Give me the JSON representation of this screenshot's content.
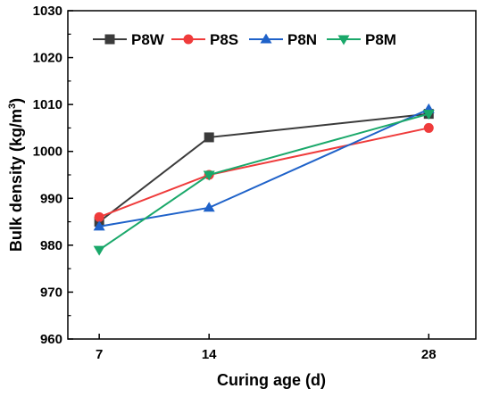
{
  "chart_data": {
    "type": "line",
    "title": "",
    "xlabel": "Curing age (d)",
    "ylabel_main": "Bulk density (kg/m",
    "ylabel_sup": "3",
    "ylabel_end": ")",
    "x": [
      7,
      14,
      28
    ],
    "x_tick_labels": [
      "7",
      "14",
      "28"
    ],
    "xlim": [
      5,
      31
    ],
    "ylim": [
      960,
      1030
    ],
    "y_ticks": [
      960,
      970,
      980,
      990,
      1000,
      1010,
      1020,
      1030
    ],
    "grid": false,
    "legend_position": "top-left",
    "series": [
      {
        "name": "P8W",
        "color": "#3b3b3b",
        "marker": "square",
        "values": [
          985,
          1003,
          1008
        ]
      },
      {
        "name": "P8S",
        "color": "#ef3b3b",
        "marker": "circle",
        "values": [
          986,
          995,
          1005
        ]
      },
      {
        "name": "P8N",
        "color": "#1f62c9",
        "marker": "triangle-up",
        "values": [
          984,
          988,
          1009
        ]
      },
      {
        "name": "P8M",
        "color": "#1aa86a",
        "marker": "triangle-down",
        "values": [
          979,
          995,
          1008
        ]
      }
    ]
  }
}
